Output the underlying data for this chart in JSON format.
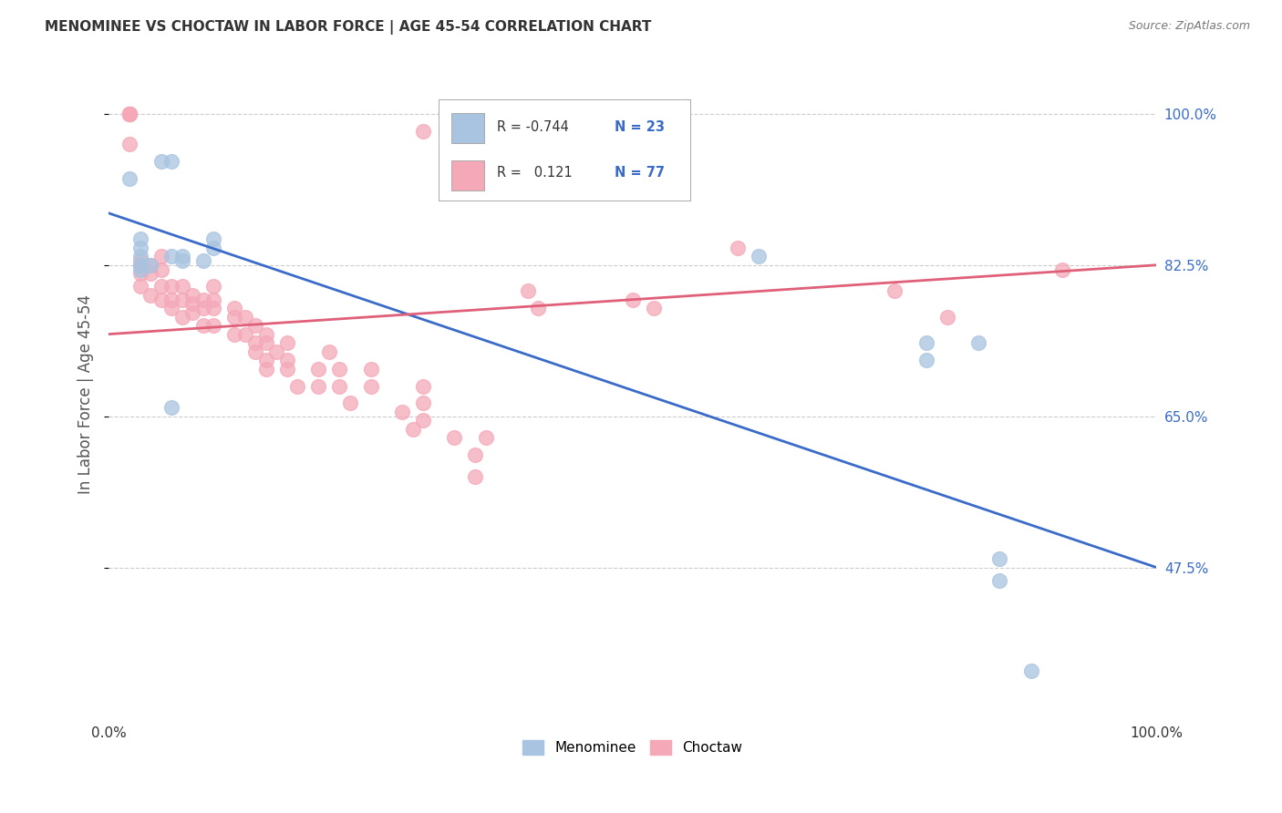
{
  "title": "MENOMINEE VS CHOCTAW IN LABOR FORCE | AGE 45-54 CORRELATION CHART",
  "source": "Source: ZipAtlas.com",
  "ylabel": "In Labor Force | Age 45-54",
  "xlim": [
    0.0,
    1.0
  ],
  "ylim": [
    0.3,
    1.05
  ],
  "yticks": [
    0.475,
    0.65,
    0.825,
    1.0
  ],
  "ytick_labels": [
    "47.5%",
    "65.0%",
    "82.5%",
    "100.0%"
  ],
  "menominee_color": "#a8c4e0",
  "choctaw_color": "#f4a8b8",
  "menominee_line_color": "#3a6bc8",
  "choctaw_line_color": "#e0607a",
  "legend_R_menominee": "-0.744",
  "legend_N_menominee": "23",
  "legend_R_choctaw": "0.121",
  "legend_N_choctaw": "77",
  "menominee_x": [
    0.02,
    0.05,
    0.06,
    0.03,
    0.03,
    0.03,
    0.03,
    0.03,
    0.04,
    0.06,
    0.07,
    0.07,
    0.09,
    0.1,
    0.1,
    0.06,
    0.62,
    0.78,
    0.78,
    0.83,
    0.85,
    0.85,
    0.88
  ],
  "menominee_y": [
    0.925,
    0.945,
    0.945,
    0.855,
    0.845,
    0.835,
    0.825,
    0.82,
    0.825,
    0.835,
    0.835,
    0.83,
    0.83,
    0.845,
    0.855,
    0.66,
    0.835,
    0.735,
    0.715,
    0.735,
    0.485,
    0.46,
    0.355
  ],
  "choctaw_x": [
    0.02,
    0.02,
    0.02,
    0.02,
    0.02,
    0.02,
    0.02,
    0.3,
    0.03,
    0.03,
    0.03,
    0.03,
    0.04,
    0.04,
    0.04,
    0.05,
    0.05,
    0.05,
    0.05,
    0.06,
    0.06,
    0.06,
    0.07,
    0.07,
    0.07,
    0.08,
    0.08,
    0.08,
    0.09,
    0.09,
    0.09,
    0.1,
    0.1,
    0.1,
    0.1,
    0.12,
    0.12,
    0.12,
    0.13,
    0.13,
    0.14,
    0.14,
    0.14,
    0.15,
    0.15,
    0.15,
    0.15,
    0.16,
    0.17,
    0.17,
    0.17,
    0.18,
    0.2,
    0.2,
    0.21,
    0.22,
    0.22,
    0.23,
    0.25,
    0.25,
    0.28,
    0.29,
    0.3,
    0.3,
    0.3,
    0.33,
    0.35,
    0.36,
    0.4,
    0.41,
    0.5,
    0.52,
    0.6,
    0.75,
    0.8,
    0.91,
    0.35
  ],
  "choctaw_y": [
    1.0,
    1.0,
    1.0,
    1.0,
    1.0,
    1.0,
    0.965,
    0.98,
    0.83,
    0.825,
    0.815,
    0.8,
    0.825,
    0.815,
    0.79,
    0.835,
    0.82,
    0.8,
    0.785,
    0.8,
    0.785,
    0.775,
    0.8,
    0.785,
    0.765,
    0.79,
    0.78,
    0.77,
    0.785,
    0.775,
    0.755,
    0.8,
    0.785,
    0.775,
    0.755,
    0.775,
    0.765,
    0.745,
    0.765,
    0.745,
    0.755,
    0.735,
    0.725,
    0.745,
    0.735,
    0.715,
    0.705,
    0.725,
    0.735,
    0.715,
    0.705,
    0.685,
    0.705,
    0.685,
    0.725,
    0.705,
    0.685,
    0.665,
    0.705,
    0.685,
    0.655,
    0.635,
    0.685,
    0.665,
    0.645,
    0.625,
    0.605,
    0.625,
    0.795,
    0.775,
    0.785,
    0.775,
    0.845,
    0.795,
    0.765,
    0.82,
    0.58
  ],
  "background_color": "#ffffff",
  "grid_color": "#cccccc",
  "menominee_line_x0": 0.0,
  "menominee_line_x1": 1.0,
  "menominee_line_y0": 0.885,
  "menominee_line_y1": 0.475,
  "choctaw_line_x0": 0.0,
  "choctaw_line_x1": 1.0,
  "choctaw_line_y0": 0.745,
  "choctaw_line_y1": 0.825
}
